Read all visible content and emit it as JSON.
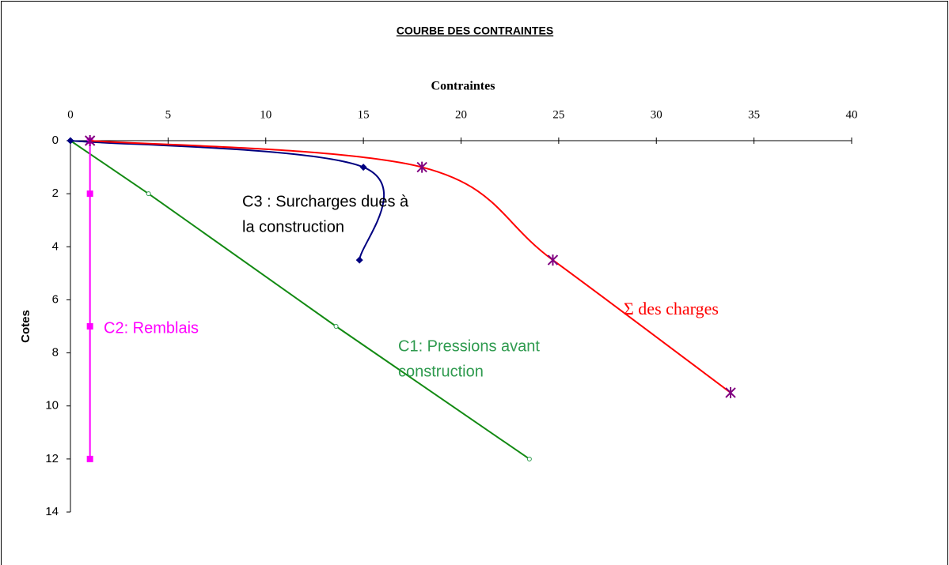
{
  "chart_data": {
    "type": "scatter",
    "title": "COURBE DES CONTRAINTES",
    "x_label": "Contraintes",
    "y_label": "Cotes",
    "xlim": [
      0,
      40
    ],
    "xticks": [
      0,
      5,
      10,
      15,
      20,
      25,
      30,
      35,
      40
    ],
    "ylim": [
      0,
      14
    ],
    "yticks": [
      0,
      2,
      4,
      6,
      8,
      10,
      12,
      14
    ],
    "y_inverted": true,
    "x_axis_position": "top",
    "series": [
      {
        "name": "C1",
        "color": "#138a13",
        "marker": "circle",
        "marker_color": "#2e9a4e",
        "smooth": false,
        "x": [
          0,
          4,
          13.6,
          23.5
        ],
        "values": [
          0,
          2,
          7,
          12
        ]
      },
      {
        "name": "C2",
        "color": "#ff00ff",
        "marker": "square",
        "marker_color": "#ff00ff",
        "smooth": false,
        "x": [
          1,
          1,
          1,
          1
        ],
        "values": [
          0,
          2,
          7,
          12
        ]
      },
      {
        "name": "C3",
        "color": "#000080",
        "marker": "diamond",
        "marker_color": "#000080",
        "smooth": true,
        "x": [
          0,
          15,
          14.8
        ],
        "values": [
          0,
          1,
          4.5
        ]
      },
      {
        "name": "Σ",
        "color": "#ff0000",
        "marker": "star",
        "marker_color": "#800080",
        "smooth": true,
        "x": [
          1,
          18,
          24.7,
          33.8
        ],
        "values": [
          0,
          1,
          4.5,
          9.5
        ]
      }
    ],
    "annotations": [
      {
        "lines": [
          "C3 :  Surcharges dues à",
          "la construction"
        ],
        "color": "#000000"
      },
      {
        "lines": [
          "C2: Remblais"
        ],
        "color": "#ff00ff"
      },
      {
        "lines": [
          "C1:  Pressions avant",
          "construction"
        ],
        "color": "#2e9a4e"
      },
      {
        "lines": [
          "Σ des charges"
        ],
        "color": "#ff0000"
      }
    ]
  }
}
